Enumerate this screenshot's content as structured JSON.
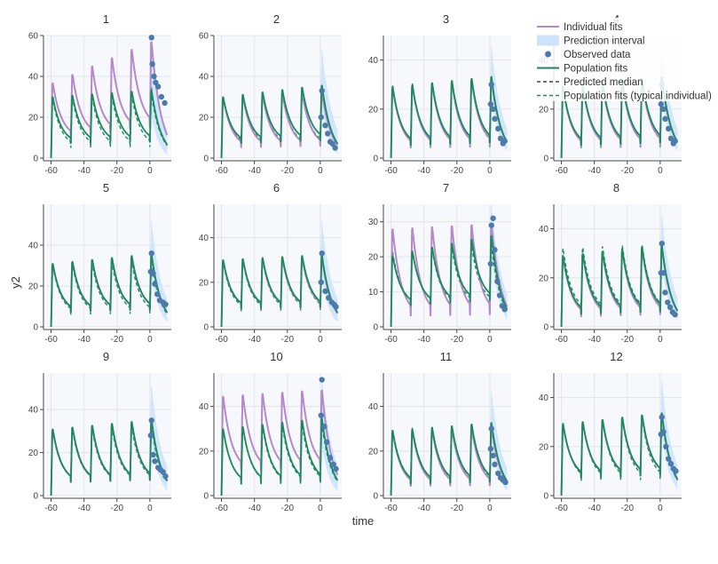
{
  "chart_data": {
    "type": "line",
    "layout": "3x4 grid of panels",
    "xlabel": "time",
    "ylabel": "y2",
    "xlim": [
      -63,
      13
    ],
    "xticks": [
      -60,
      -40,
      -20,
      0
    ],
    "colors": {
      "individual": "#b389c9",
      "interval": "#cce3fb",
      "observed": "#4a7bab",
      "population": "#1a8a5c",
      "median": "#222222",
      "typical": "#1a8a5c",
      "plot_bg": "#f7f8fc",
      "grid": "#e2e4ea"
    },
    "legend": {
      "position": "top-right",
      "items": [
        {
          "label": "Individual fits",
          "kind": "line-individual"
        },
        {
          "label": "Prediction interval",
          "kind": "band"
        },
        {
          "label": "Observed data",
          "kind": "marker"
        },
        {
          "label": "Population fits",
          "kind": "line-population"
        },
        {
          "label": "Predicted median",
          "kind": "dash-median"
        },
        {
          "label": "Population fits (typical individual)",
          "kind": "dash-typical"
        }
      ]
    },
    "doses": [
      -60,
      -48,
      -36,
      -24,
      -12,
      0
    ],
    "panels": [
      {
        "id": "1",
        "ylim": [
          0,
          60
        ],
        "yticks": [
          0,
          20,
          40,
          60
        ],
        "indPeak": 38,
        "indInc": 4.2,
        "indFloor": 10,
        "popPeak": 31,
        "popInc": 0.7,
        "popFloor": 7,
        "typPeak": 30,
        "typFloor": 5,
        "band": 18,
        "obs_t": [
          1,
          1.5,
          2.5,
          3.5,
          5,
          7,
          9
        ],
        "obs_y": [
          59,
          46,
          40,
          37,
          35,
          30,
          27
        ]
      },
      {
        "id": "2",
        "ylim": [
          0,
          60
        ],
        "yticks": [
          0,
          20,
          40,
          60
        ],
        "indPeak": 31,
        "indInc": 0.5,
        "indFloor": 5,
        "popPeak": 31,
        "popInc": 1.2,
        "popFloor": 7,
        "typPeak": 31,
        "typFloor": 6,
        "band": 18,
        "obs_t": [
          0.5,
          1,
          3,
          4.5,
          6,
          7.5,
          9
        ],
        "obs_y": [
          20,
          33,
          16,
          12,
          8,
          7,
          5
        ]
      },
      {
        "id": "3",
        "ylim": [
          0,
          50
        ],
        "yticks": [
          0,
          20,
          40
        ],
        "indPeak": 30,
        "indInc": 0.7,
        "indFloor": 4,
        "popPeak": 30,
        "popInc": 0.9,
        "popFloor": 5,
        "typPeak": 31,
        "typFloor": 4,
        "band": 12,
        "obs_t": [
          0.5,
          1,
          2,
          3,
          5,
          6.5,
          8,
          9
        ],
        "obs_y": [
          22,
          30,
          20,
          16,
          12,
          8,
          6,
          7
        ]
      },
      {
        "id": "4",
        "ylim": [
          0,
          50
        ],
        "yticks": [
          0,
          20,
          40
        ],
        "indPeak": 30,
        "indInc": 0.7,
        "indFloor": 4,
        "popPeak": 30,
        "popInc": 0.9,
        "popFloor": 5,
        "typPeak": 31,
        "typFloor": 4,
        "band": 12,
        "obs_t": [
          0.5,
          1,
          2,
          3,
          5,
          6.5,
          8,
          9
        ],
        "obs_y": [
          22,
          30,
          20,
          16,
          12,
          8,
          6,
          7
        ]
      },
      {
        "id": "5",
        "ylim": [
          0,
          60
        ],
        "yticks": [
          0,
          20,
          40
        ],
        "indPeak": 32,
        "indInc": 0.9,
        "indFloor": 7,
        "popPeak": 32,
        "popInc": 1.0,
        "popFloor": 7,
        "typPeak": 31,
        "typFloor": 6,
        "band": 16,
        "obs_t": [
          0.5,
          1,
          2,
          3,
          4.5,
          6,
          8,
          9.5
        ],
        "obs_y": [
          27,
          36,
          26,
          21,
          16,
          13,
          12,
          11
        ]
      },
      {
        "id": "6",
        "ylim": [
          0,
          55
        ],
        "yticks": [
          0,
          20,
          40
        ],
        "indPeak": 31,
        "indInc": 0.2,
        "indFloor": 8,
        "popPeak": 31,
        "popInc": 0.5,
        "popFloor": 8,
        "typPeak": 30,
        "typFloor": 7,
        "band": 15,
        "obs_t": [
          0.5,
          1,
          3,
          5,
          7,
          8.5,
          9.5
        ],
        "obs_y": [
          20,
          33,
          16,
          13,
          11,
          10,
          9
        ]
      },
      {
        "id": "7",
        "ylim": [
          0,
          35
        ],
        "yticks": [
          0,
          10,
          20,
          30
        ],
        "indPeak": 29,
        "indInc": 0.3,
        "indFloor": 3,
        "popPeak": 21,
        "popInc": 1.2,
        "popFloor": 6,
        "typPeak": 22,
        "typFloor": 6,
        "band": 8,
        "obs_t": [
          0.5,
          1,
          2,
          3,
          4.5,
          6,
          7.5,
          9
        ],
        "obs_y": [
          18,
          29,
          31,
          22,
          13,
          9,
          6,
          5
        ]
      },
      {
        "id": "8",
        "ylim": [
          0,
          50
        ],
        "yticks": [
          0,
          20,
          40
        ],
        "indPeak": 30,
        "indInc": 0.7,
        "indFloor": 4,
        "popPeak": 30,
        "popInc": 0.9,
        "popFloor": 5,
        "typPeak": 33,
        "typFloor": 6,
        "band": 12,
        "obs_t": [
          0.5,
          1,
          2,
          3,
          4.5,
          6,
          7.5,
          9
        ],
        "obs_y": [
          22,
          34,
          22,
          14,
          10,
          8,
          6,
          5
        ]
      },
      {
        "id": "9",
        "ylim": [
          0,
          57
        ],
        "yticks": [
          0,
          20,
          40
        ],
        "indPeak": 32,
        "indInc": 0.8,
        "indFloor": 6,
        "popPeak": 32,
        "popInc": 0.9,
        "popFloor": 6,
        "typPeak": 31,
        "typFloor": 6,
        "band": 16,
        "obs_t": [
          0.5,
          1,
          2,
          3,
          5,
          6.5,
          8,
          9.5
        ],
        "obs_y": [
          28,
          35,
          19,
          16,
          13,
          12,
          11,
          9
        ]
      },
      {
        "id": "10",
        "ylim": [
          0,
          55
        ],
        "yticks": [
          0,
          20,
          40
        ],
        "indPeak": 46,
        "indInc": 0.6,
        "indFloor": 11,
        "popPeak": 31,
        "popInc": 1.0,
        "popFloor": 5,
        "typPeak": 31,
        "typFloor": 5,
        "band": 18,
        "obs_t": [
          0.5,
          1,
          2.5,
          4,
          6,
          8,
          9.5
        ],
        "obs_y": [
          36,
          52,
          31,
          24,
          17,
          14,
          12
        ]
      },
      {
        "id": "11",
        "ylim": [
          0,
          55
        ],
        "yticks": [
          0,
          20,
          40
        ],
        "indPeak": 30,
        "indInc": 0.3,
        "indFloor": 4,
        "popPeak": 30,
        "popInc": 0.8,
        "popFloor": 5,
        "typPeak": 31,
        "typFloor": 5,
        "band": 14,
        "obs_t": [
          0.5,
          1,
          2,
          3,
          5,
          6.5,
          8,
          9.5
        ],
        "obs_y": [
          21,
          30,
          18,
          14,
          10,
          8,
          7,
          6
        ]
      },
      {
        "id": "12",
        "ylim": [
          0,
          50
        ],
        "yticks": [
          0,
          20,
          40
        ],
        "indPeak": 30,
        "indInc": 0.9,
        "indFloor": 7,
        "popPeak": 30,
        "popInc": 1.0,
        "popFloor": 7,
        "typPeak": 31,
        "typFloor": 6,
        "band": 13,
        "obs_t": [
          0.5,
          1,
          2,
          3.5,
          5,
          6.5,
          8,
          9.5
        ],
        "obs_y": [
          25,
          32,
          26,
          20,
          15,
          13,
          11,
          10
        ]
      }
    ]
  }
}
